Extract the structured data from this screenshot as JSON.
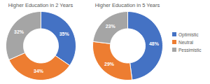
{
  "chart_data": [
    {
      "type": "pie",
      "title": "Higher Education in 2 Years",
      "categories": [
        "Optimistic",
        "Neutral",
        "Pessimistic"
      ],
      "values": [
        35,
        34,
        32
      ],
      "value_labels": [
        "35%",
        "34%",
        "32%"
      ],
      "colors": [
        "#4472c4",
        "#ed7d31",
        "#a5a5a5"
      ],
      "data_labels": true
    },
    {
      "type": "pie",
      "title": "Higher Education in 5 Years",
      "categories": [
        "Optimistic",
        "Neutral",
        "Pessimistic"
      ],
      "values": [
        48,
        29,
        23
      ],
      "value_labels": [
        "48%",
        "29%",
        "23%"
      ],
      "colors": [
        "#4472c4",
        "#ed7d31",
        "#a5a5a5"
      ],
      "data_labels": true,
      "legend": "right"
    }
  ]
}
